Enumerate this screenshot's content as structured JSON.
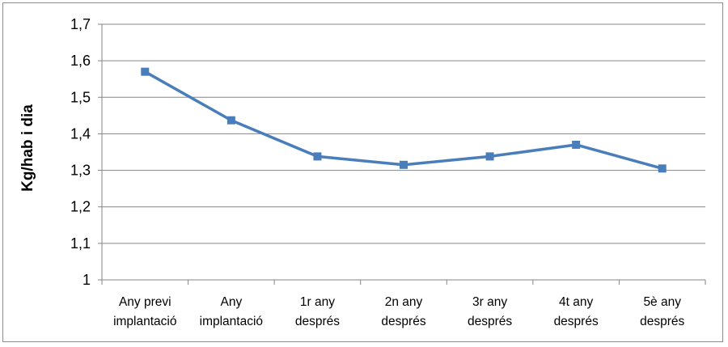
{
  "chart_data": {
    "type": "line",
    "title": "",
    "xlabel": "",
    "ylabel": "Kg/hab i dia",
    "ylim": [
      1,
      1.7
    ],
    "yticks": [
      "1",
      "1,1",
      "1,2",
      "1,3",
      "1,4",
      "1,5",
      "1,6",
      "1,7"
    ],
    "grid": true,
    "legend": "none",
    "categories": [
      [
        "Any previ",
        "implantació"
      ],
      [
        "Any",
        "implantació"
      ],
      [
        "1r any",
        "després"
      ],
      [
        "2n any",
        "després"
      ],
      [
        "3r any",
        "després"
      ],
      [
        "4t any",
        "després"
      ],
      [
        "5è any",
        "després"
      ]
    ],
    "series": [
      {
        "values": [
          1.57,
          1.437,
          1.338,
          1.315,
          1.338,
          1.37,
          1.305
        ],
        "color": "#4a7ebb",
        "marker": "square"
      }
    ]
  }
}
